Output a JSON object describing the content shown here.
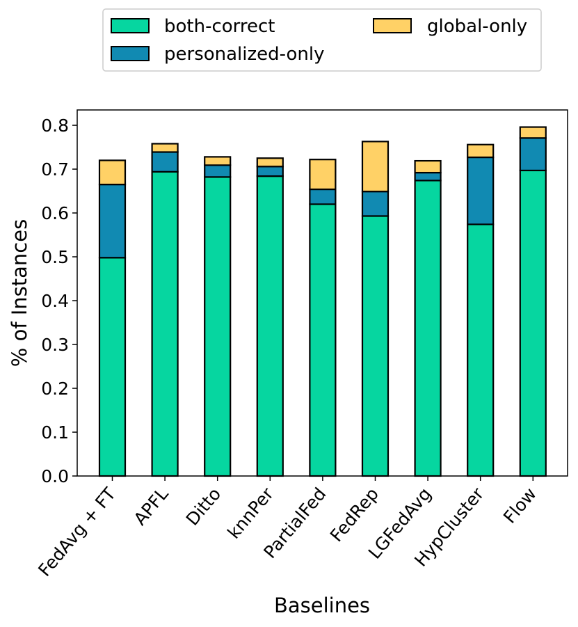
{
  "chart_data": {
    "type": "bar",
    "stacked": true,
    "categories": [
      "FedAvg + FT",
      "APFL",
      "Ditto",
      "knnPer",
      "PartialFed",
      "FedRep",
      "LGFedAvg",
      "HypCluster",
      "Flow"
    ],
    "series": [
      {
        "name": "both-correct",
        "color": "#06d6a0",
        "values": [
          0.498,
          0.694,
          0.682,
          0.684,
          0.62,
          0.593,
          0.674,
          0.574,
          0.697
        ]
      },
      {
        "name": "personalized-only",
        "color": "#118ab2",
        "values": [
          0.167,
          0.045,
          0.027,
          0.022,
          0.034,
          0.056,
          0.018,
          0.153,
          0.074
        ]
      },
      {
        "name": "global-only",
        "color": "#ffd166",
        "values": [
          0.055,
          0.019,
          0.019,
          0.019,
          0.068,
          0.114,
          0.027,
          0.029,
          0.025
        ]
      }
    ],
    "xlabel": "Baselines",
    "ylabel": "% of Instances",
    "ylim": [
      0,
      0.835
    ],
    "yticks": [
      "0.0",
      "0.1",
      "0.2",
      "0.3",
      "0.4",
      "0.5",
      "0.6",
      "0.7",
      "0.8"
    ],
    "legend_position": "top-center, outside plot",
    "legend_order": [
      "both-correct",
      "global-only",
      "personalized-only"
    ]
  }
}
